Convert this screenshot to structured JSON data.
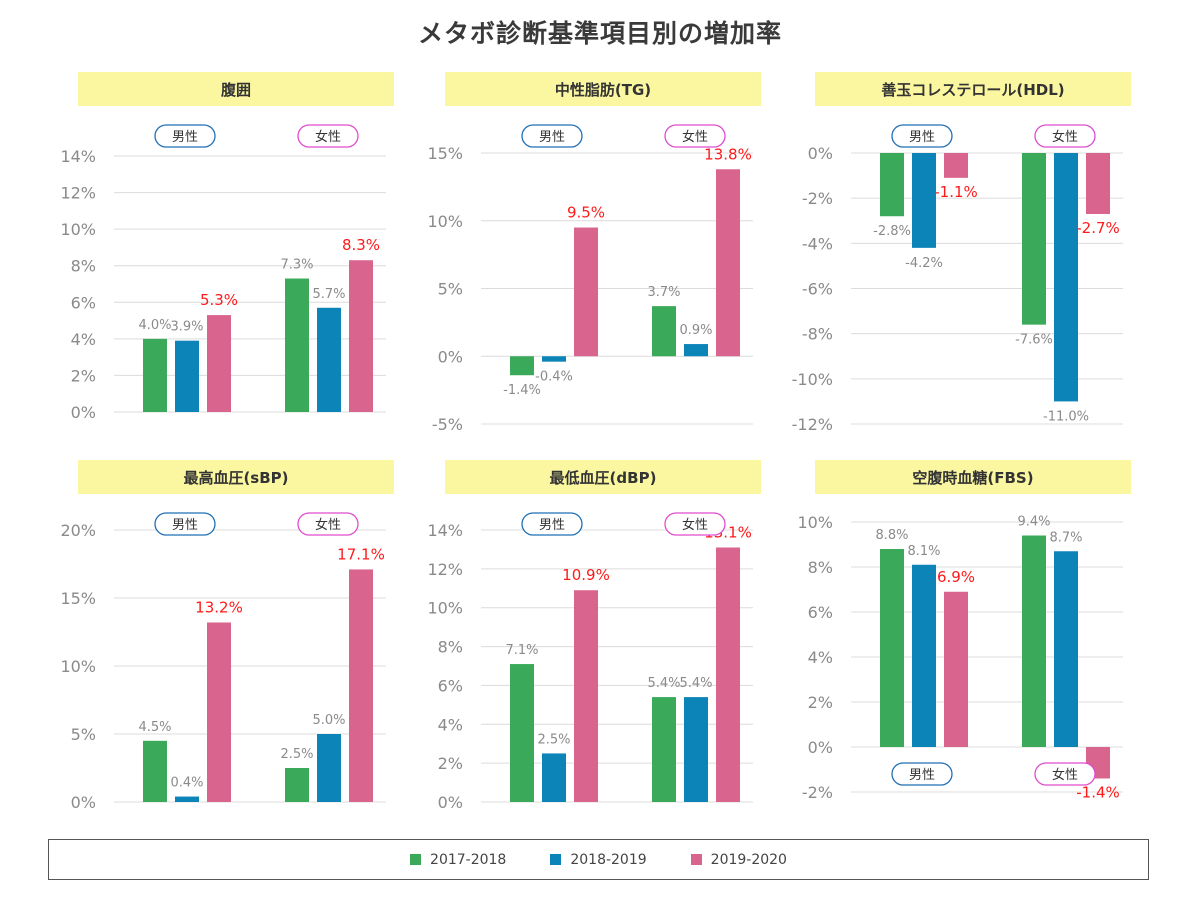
{
  "title": "メタボ診断基準項目別の増加率",
  "colors": {
    "s1": "#3aaa5a",
    "s2": "#0d84b8",
    "s3": "#d9648e",
    "grid": "#dcdcdc",
    "tick": "#8a8a8a",
    "label": "#8a8a8a",
    "label_hi": "#ff1a1a",
    "male": "#1f6fb5",
    "female": "#e04ccf"
  },
  "legend": [
    {
      "name": "2017-2018",
      "color": "#3aaa5a"
    },
    {
      "name": "2018-2019",
      "color": "#0d84b8"
    },
    {
      "name": "2019-2020",
      "color": "#d9648e"
    }
  ],
  "chart_data": [
    {
      "type": "bar",
      "title": "腹囲",
      "categories": [
        "男性",
        "女性"
      ],
      "series": [
        {
          "name": "2017-2018",
          "values": [
            4.0,
            7.3
          ]
        },
        {
          "name": "2018-2019",
          "values": [
            3.9,
            5.7
          ]
        },
        {
          "name": "2019-2020",
          "values": [
            5.3,
            8.3
          ]
        }
      ],
      "labels": [
        [
          "4.0%",
          "3.9%",
          "5.3%"
        ],
        [
          "7.3%",
          "5.7%",
          "8.3%"
        ]
      ],
      "yticks": [
        0,
        2,
        4,
        6,
        8,
        10,
        12,
        14
      ],
      "tick_labels": [
        "0%",
        "2%",
        "4%",
        "6%",
        "8%",
        "10%",
        "12%",
        "14%"
      ],
      "ylim": [
        0,
        14
      ]
    },
    {
      "type": "bar",
      "title": "中性脂肪(TG)",
      "categories": [
        "男性",
        "女性"
      ],
      "series": [
        {
          "name": "2017-2018",
          "values": [
            -1.4,
            3.7
          ]
        },
        {
          "name": "2018-2019",
          "values": [
            -0.4,
            0.9
          ]
        },
        {
          "name": "2019-2020",
          "values": [
            9.5,
            13.8
          ]
        }
      ],
      "labels": [
        [
          "-1.4%",
          "-0.4%",
          "9.5%"
        ],
        [
          "3.7%",
          "0.9%",
          "13.8%"
        ]
      ],
      "yticks": [
        -5,
        0,
        5,
        10,
        15
      ],
      "tick_labels": [
        "-5%",
        "0%",
        "5%",
        "10%",
        "15%"
      ],
      "ylim": [
        -5,
        15
      ]
    },
    {
      "type": "bar",
      "title": "善玉コレステロール(HDL)",
      "categories": [
        "男性",
        "女性"
      ],
      "series": [
        {
          "name": "2017-2018",
          "values": [
            -2.8,
            -7.6
          ]
        },
        {
          "name": "2018-2019",
          "values": [
            -4.2,
            -11.0
          ]
        },
        {
          "name": "2019-2020",
          "values": [
            -1.1,
            -2.7
          ]
        }
      ],
      "labels": [
        [
          "-2.8%",
          "-4.2%",
          "-1.1%"
        ],
        [
          "-7.6%",
          "-11.0%",
          "-2.7%"
        ]
      ],
      "yticks": [
        -12,
        -10,
        -8,
        -6,
        -4,
        -2,
        0
      ],
      "tick_labels": [
        "-12%",
        "-10%",
        "-8%",
        "-6%",
        "-4%",
        "-2%",
        "0%"
      ],
      "ylim": [
        -12,
        0
      ]
    },
    {
      "type": "bar",
      "title": "最高血圧(sBP)",
      "categories": [
        "男性",
        "女性"
      ],
      "series": [
        {
          "name": "2017-2018",
          "values": [
            4.5,
            2.5
          ]
        },
        {
          "name": "2018-2019",
          "values": [
            0.4,
            5.0
          ]
        },
        {
          "name": "2019-2020",
          "values": [
            13.2,
            17.1
          ]
        }
      ],
      "labels": [
        [
          "4.5%",
          "0.4%",
          "13.2%"
        ],
        [
          "2.5%",
          "5.0%",
          "17.1%"
        ]
      ],
      "yticks": [
        0,
        5,
        10,
        15,
        20
      ],
      "tick_labels": [
        "0%",
        "5%",
        "10%",
        "15%",
        "20%"
      ],
      "ylim": [
        0,
        20
      ]
    },
    {
      "type": "bar",
      "title": "最低血圧(dBP)",
      "categories": [
        "男性",
        "女性"
      ],
      "series": [
        {
          "name": "2017-2018",
          "values": [
            7.1,
            5.4
          ]
        },
        {
          "name": "2018-2019",
          "values": [
            2.5,
            5.4
          ]
        },
        {
          "name": "2019-2020",
          "values": [
            10.9,
            13.1
          ]
        }
      ],
      "labels": [
        [
          "7.1%",
          "2.5%",
          "10.9%"
        ],
        [
          "5.4%",
          "5.4%",
          "13.1%"
        ]
      ],
      "yticks": [
        0,
        2,
        4,
        6,
        8,
        10,
        12,
        14
      ],
      "tick_labels": [
        "0%",
        "2%",
        "4%",
        "6%",
        "8%",
        "10%",
        "12%",
        "14%"
      ],
      "ylim": [
        0,
        14
      ]
    },
    {
      "type": "bar",
      "title": "空腹時血糖(FBS)",
      "categories": [
        "男性",
        "女性"
      ],
      "series": [
        {
          "name": "2017-2018",
          "values": [
            8.8,
            9.4
          ]
        },
        {
          "name": "2018-2019",
          "values": [
            8.1,
            8.7
          ]
        },
        {
          "name": "2019-2020",
          "values": [
            6.9,
            -1.4
          ]
        }
      ],
      "labels": [
        [
          "8.8%",
          "8.1%",
          "6.9%"
        ],
        [
          "9.4%",
          "8.7%",
          "-1.4%"
        ]
      ],
      "yticks": [
        -2,
        0,
        2,
        4,
        6,
        8,
        10
      ],
      "tick_labels": [
        "-2%",
        "0%",
        "2%",
        "4%",
        "6%",
        "8%",
        "10%"
      ],
      "ylim": [
        -2,
        10
      ]
    }
  ]
}
